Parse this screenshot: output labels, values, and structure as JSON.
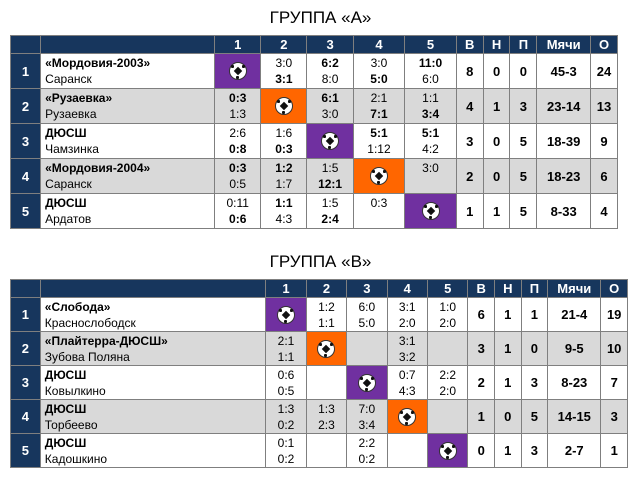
{
  "groups": [
    {
      "title": "ГРУППА «А»",
      "headers": [
        "1",
        "2",
        "3",
        "4",
        "5",
        "В",
        "Н",
        "П",
        "Мячи",
        "О"
      ],
      "rows": [
        {
          "num": "1",
          "name": "«Мордовия-2003»",
          "city": "Саранск",
          "cells": [
            null,
            [
              "3:0",
              "3:1"
            ],
            [
              "6:2",
              "8:0"
            ],
            [
              "3:0",
              "5:0"
            ],
            [
              "11:0",
              "6:0"
            ]
          ],
          "bold": [
            null,
            [
              false,
              true
            ],
            [
              true,
              false
            ],
            [
              false,
              true
            ],
            [
              true,
              false
            ]
          ],
          "self": 1,
          "w": "8",
          "d": "0",
          "l": "0",
          "goals": "45-3",
          "pts": "24"
        },
        {
          "num": "2",
          "name": "«Рузаевка»",
          "city": "Рузаевка",
          "cells": [
            [
              "0:3",
              "1:3"
            ],
            null,
            [
              "6:1",
              "3:0"
            ],
            [
              "2:1",
              "7:1"
            ],
            [
              "1:1",
              "3:4"
            ]
          ],
          "bold": [
            [
              true,
              false
            ],
            null,
            [
              true,
              false
            ],
            [
              false,
              true
            ],
            [
              false,
              true
            ]
          ],
          "self": 2,
          "w": "4",
          "d": "1",
          "l": "3",
          "goals": "23-14",
          "pts": "13"
        },
        {
          "num": "3",
          "name": "ДЮСШ",
          "city": "Чамзинка",
          "cells": [
            [
              "2:6",
              "0:8"
            ],
            [
              "1:6",
              "0:3"
            ],
            null,
            [
              "5:1",
              "1:12"
            ],
            [
              "5:1",
              "4:2"
            ]
          ],
          "bold": [
            [
              false,
              true
            ],
            [
              false,
              true
            ],
            null,
            [
              true,
              false
            ],
            [
              true,
              false
            ]
          ],
          "self": 3,
          "w": "3",
          "d": "0",
          "l": "5",
          "goals": "18-39",
          "pts": "9"
        },
        {
          "num": "4",
          "name": "«Мордовия-2004»",
          "city": "Саранск",
          "cells": [
            [
              "0:3",
              "0:5"
            ],
            [
              "1:2",
              "1:7"
            ],
            [
              "1:5",
              "12:1"
            ],
            null,
            [
              "3:0",
              ""
            ]
          ],
          "bold": [
            [
              true,
              false
            ],
            [
              true,
              false
            ],
            [
              false,
              true
            ],
            null,
            [
              false,
              false
            ]
          ],
          "self": 4,
          "w": "2",
          "d": "0",
          "l": "5",
          "goals": "18-23",
          "pts": "6"
        },
        {
          "num": "5",
          "name": "ДЮСШ",
          "city": "Ардатов",
          "cells": [
            [
              "0:11",
              "0:6"
            ],
            [
              "1:1",
              "4:3"
            ],
            [
              "1:5",
              "2:4"
            ],
            [
              "0:3",
              ""
            ],
            null
          ],
          "bold": [
            [
              false,
              true
            ],
            [
              true,
              false
            ],
            [
              false,
              true
            ],
            [
              false,
              false
            ],
            null
          ],
          "self": 5,
          "w": "1",
          "d": "1",
          "l": "5",
          "goals": "8-33",
          "pts": "4"
        }
      ]
    },
    {
      "title": "ГРУППА «В»",
      "headers": [
        "1",
        "2",
        "3",
        "4",
        "5",
        "В",
        "Н",
        "П",
        "Мячи",
        "О"
      ],
      "rows": [
        {
          "num": "1",
          "name": "«Слобода»",
          "city": "Краснослободск",
          "cells": [
            null,
            [
              "1:2",
              "1:1"
            ],
            [
              "6:0",
              "5:0"
            ],
            [
              "3:1",
              "2:0"
            ],
            [
              "1:0",
              "2:0"
            ]
          ],
          "bold": [
            null,
            [
              false,
              false
            ],
            [
              false,
              false
            ],
            [
              false,
              false
            ],
            [
              false,
              false
            ]
          ],
          "self": 1,
          "w": "6",
          "d": "1",
          "l": "1",
          "goals": "21-4",
          "pts": "19"
        },
        {
          "num": "2",
          "name": "«Плайтерра-ДЮСШ»",
          "city": "Зубова Поляна",
          "cells": [
            [
              "2:1",
              "1:1"
            ],
            null,
            [
              "",
              ""
            ],
            [
              "3:1",
              "3:2"
            ],
            [
              "",
              ""
            ]
          ],
          "bold": [
            [
              false,
              false
            ],
            null,
            [
              false,
              false
            ],
            [
              false,
              false
            ],
            [
              false,
              false
            ]
          ],
          "self": 2,
          "w": "3",
          "d": "1",
          "l": "0",
          "goals": "9-5",
          "pts": "10"
        },
        {
          "num": "3",
          "name": "ДЮСШ",
          "city": "Ковылкино",
          "cells": [
            [
              "0:6",
              "0:5"
            ],
            [
              "",
              ""
            ],
            null,
            [
              "0:7",
              "4:3"
            ],
            [
              "2:2",
              "2:0"
            ]
          ],
          "bold": [
            [
              false,
              false
            ],
            [
              false,
              false
            ],
            null,
            [
              false,
              false
            ],
            [
              false,
              false
            ]
          ],
          "self": 3,
          "w": "2",
          "d": "1",
          "l": "3",
          "goals": "8-23",
          "pts": "7"
        },
        {
          "num": "4",
          "name": "ДЮСШ",
          "city": "Торбеево",
          "cells": [
            [
              "1:3",
              "0:2"
            ],
            [
              "1:3",
              "2:3"
            ],
            [
              "7:0",
              "3:4"
            ],
            null,
            [
              "",
              ""
            ]
          ],
          "bold": [
            [
              false,
              false
            ],
            [
              false,
              false
            ],
            [
              false,
              false
            ],
            null,
            [
              false,
              false
            ]
          ],
          "self": 4,
          "w": "1",
          "d": "0",
          "l": "5",
          "goals": "14-15",
          "pts": "3"
        },
        {
          "num": "5",
          "name": "ДЮСШ",
          "city": "Кадошкино",
          "cells": [
            [
              "0:1",
              "0:2"
            ],
            [
              "",
              ""
            ],
            [
              "2:2",
              "0:2"
            ],
            [
              "",
              ""
            ],
            null
          ],
          "bold": [
            [
              false,
              false
            ],
            [
              false,
              false
            ],
            [
              false,
              false
            ],
            [
              false,
              false
            ],
            null
          ],
          "self": 5,
          "w": "0",
          "d": "1",
          "l": "3",
          "goals": "2-7",
          "pts": "1"
        }
      ]
    }
  ],
  "colors": {
    "header": "#17365d",
    "alt_row": "#d9d9d9",
    "self_odd": "#7030a0",
    "self_even": "#ff6600"
  },
  "icons": {
    "self_match": "soccer-ball-icon"
  }
}
